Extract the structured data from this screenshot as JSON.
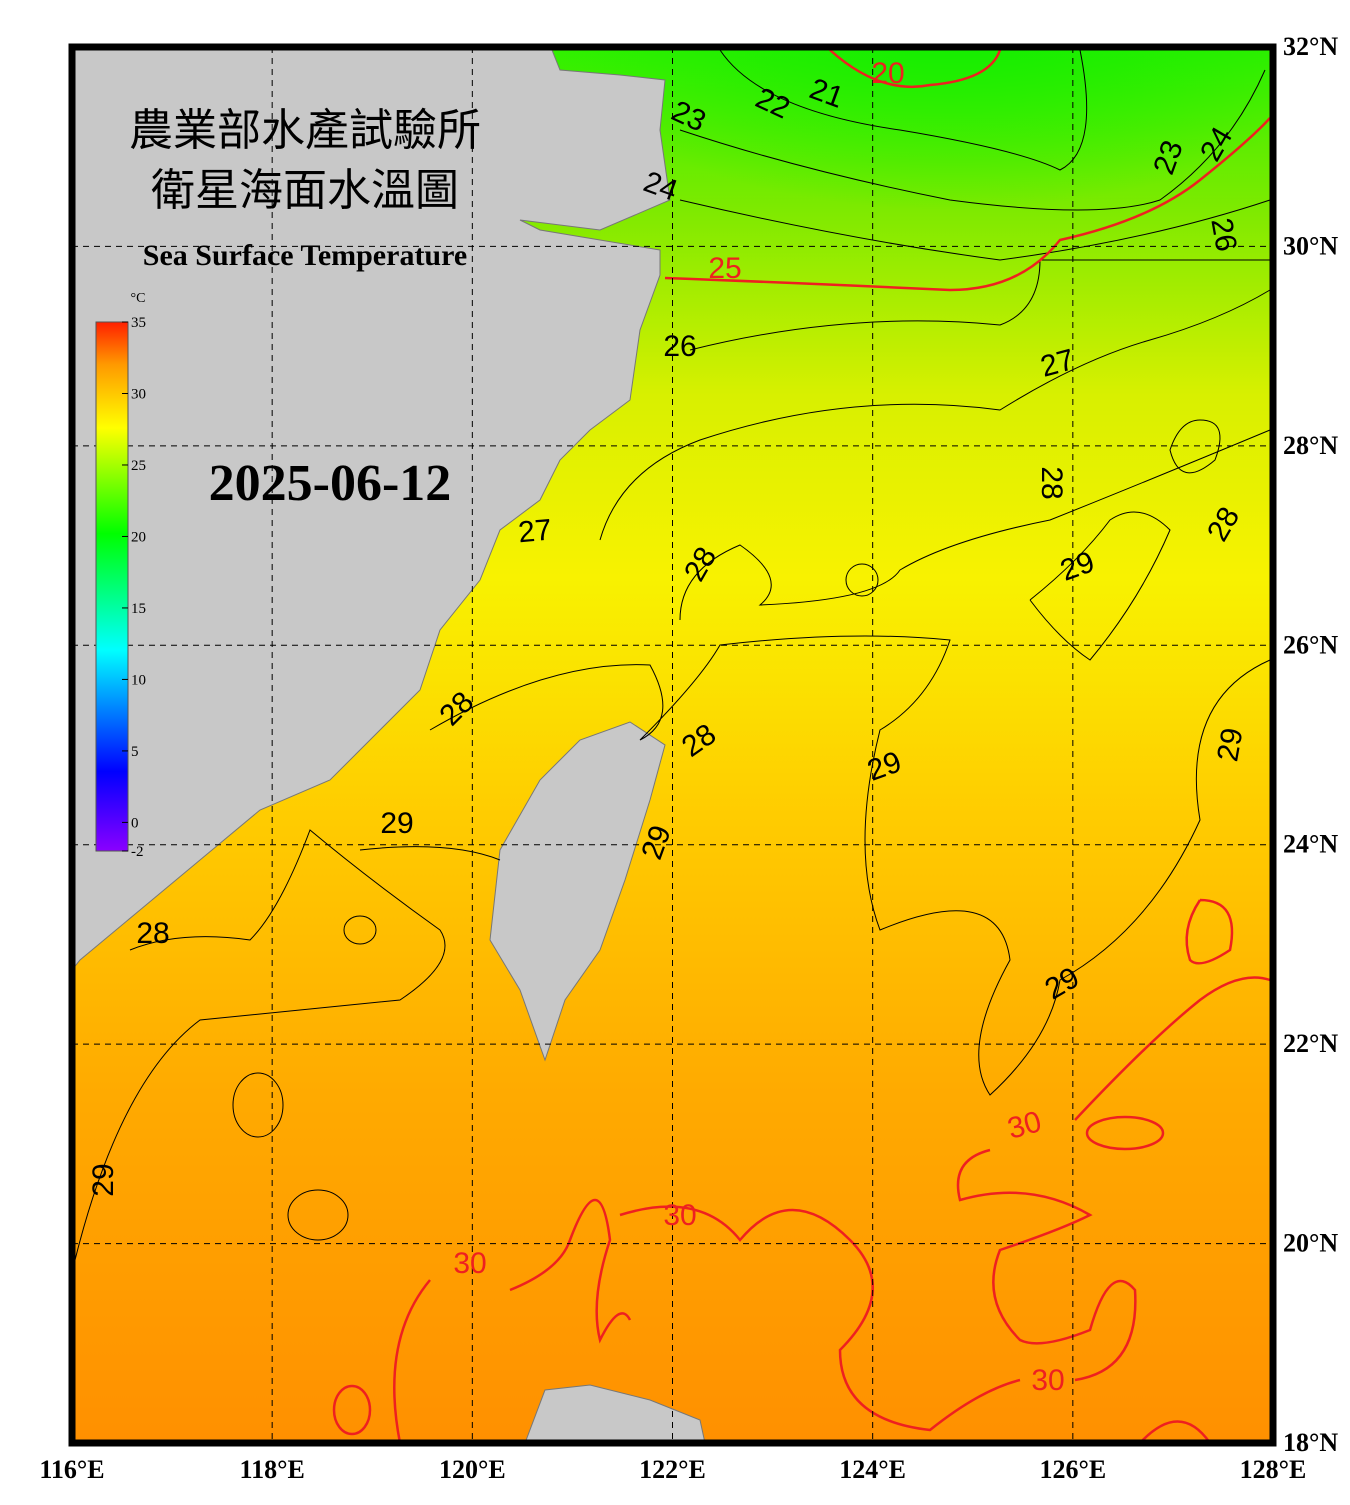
{
  "title_zh": [
    "農業部水產試驗所",
    "衛星海面水溫圖"
  ],
  "title_en": "Sea Surface Temperature",
  "date": "2025-06-12",
  "colorbar": {
    "unit": "°C",
    "range": [
      -2,
      35
    ],
    "ticks": [
      35,
      30,
      25,
      20,
      15,
      10,
      5,
      0,
      -2
    ]
  },
  "lat_range": [
    18,
    32
  ],
  "lon_range": [
    116,
    128
  ],
  "lat_ticks": [
    {
      "value": 32,
      "label": "32°N"
    },
    {
      "value": 30,
      "label": "30°N"
    },
    {
      "value": 28,
      "label": "28°N"
    },
    {
      "value": 26,
      "label": "26°N"
    },
    {
      "value": 24,
      "label": "24°N"
    },
    {
      "value": 22,
      "label": "22°N"
    },
    {
      "value": 20,
      "label": "20°N"
    },
    {
      "value": 18,
      "label": "18°N"
    }
  ],
  "lon_ticks": [
    {
      "value": 116,
      "label": "116°E"
    },
    {
      "value": 118,
      "label": "118°E"
    },
    {
      "value": 120,
      "label": "120°E"
    },
    {
      "value": 122,
      "label": "122°E"
    },
    {
      "value": 124,
      "label": "124°E"
    },
    {
      "value": 126,
      "label": "126°E"
    },
    {
      "value": 128,
      "label": "128°E"
    }
  ],
  "contour_labels": [
    20,
    21,
    22,
    23,
    24,
    23,
    24,
    26,
    25,
    26,
    27,
    27,
    28,
    28,
    29,
    28,
    28,
    28,
    29,
    29,
    29,
    29,
    28,
    29,
    30,
    29,
    30,
    30,
    30
  ]
}
